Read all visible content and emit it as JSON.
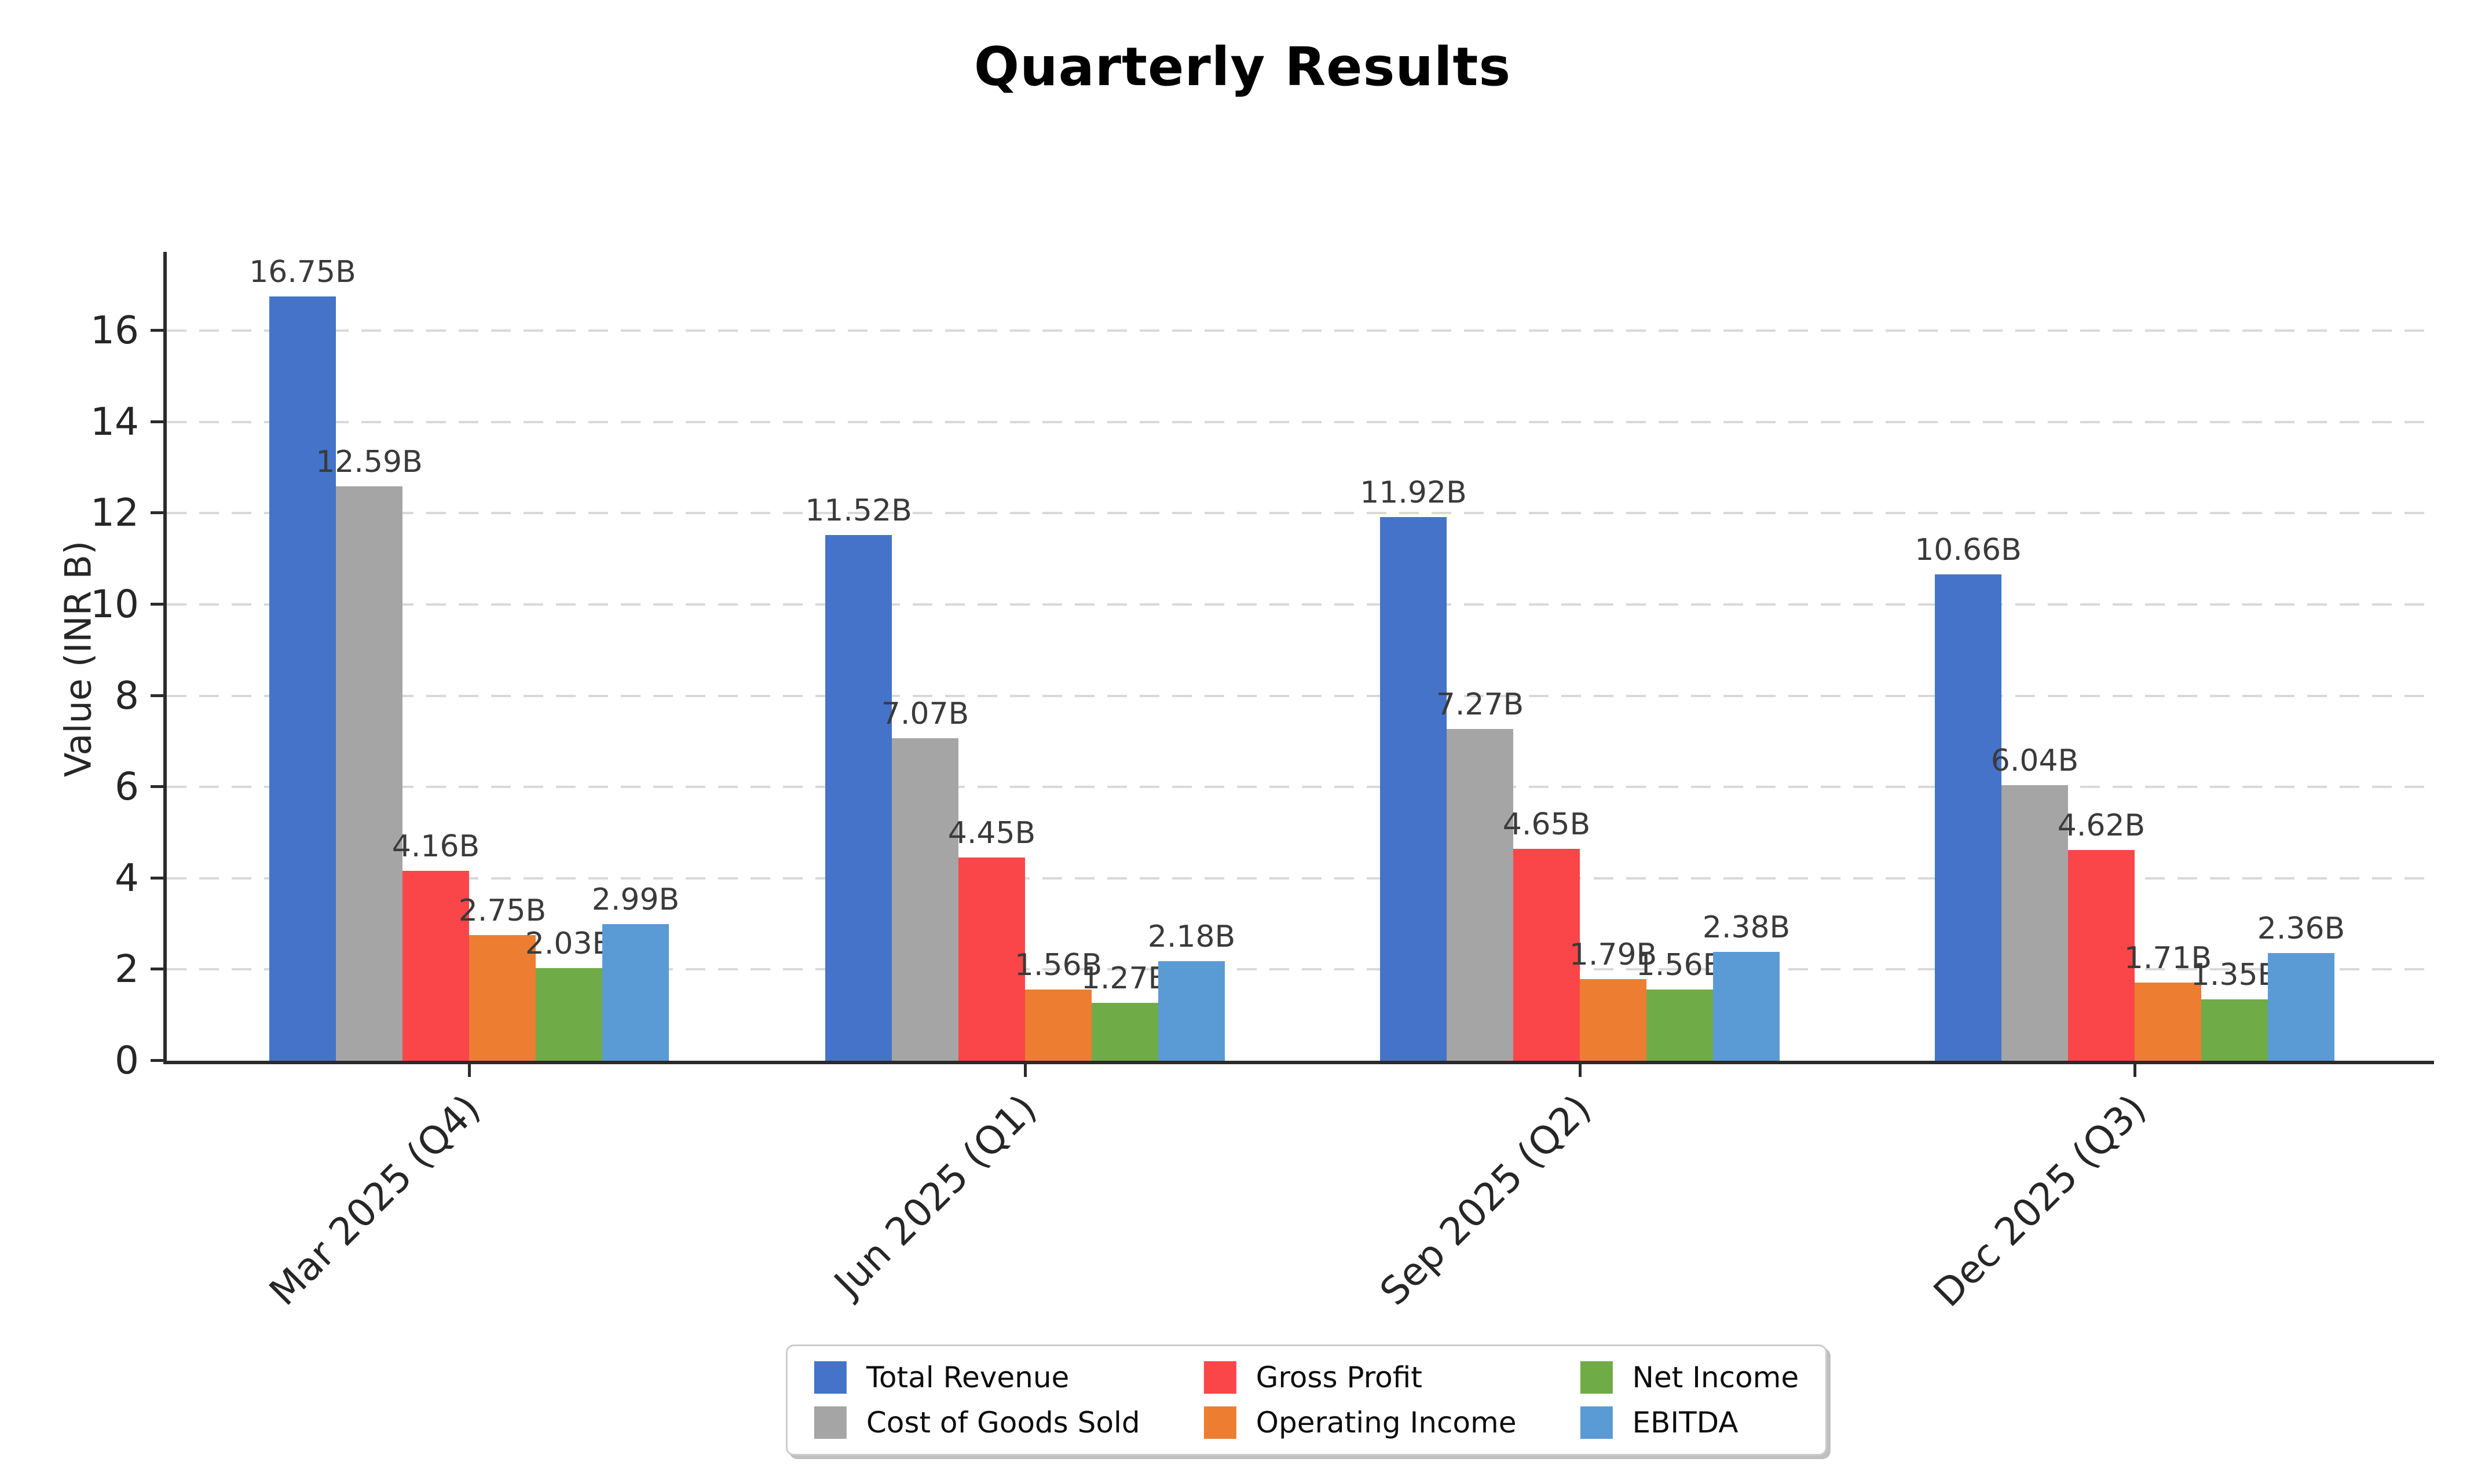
{
  "chart_data": {
    "type": "bar",
    "title": "Quarterly Results",
    "ylabel": "Value (INR B)",
    "xlabel": "",
    "categories": [
      "Mar 2025 (Q4)",
      "Jun 2025 (Q1)",
      "Sep 2025 (Q2)",
      "Dec 2025 (Q3)"
    ],
    "series": [
      {
        "name": "Total Revenue",
        "color": "#4473C9",
        "values": [
          16.75,
          11.52,
          11.92,
          10.66
        ],
        "labels": [
          "16.75B",
          "11.52B",
          "11.92B",
          "10.66B"
        ]
      },
      {
        "name": "Cost of Goods Sold",
        "color": "#A5A5A5",
        "values": [
          12.59,
          7.07,
          7.27,
          6.04
        ],
        "labels": [
          "12.59B",
          "7.07B",
          "7.27B",
          "6.04B"
        ]
      },
      {
        "name": "Gross Profit",
        "color": "#FB4649",
        "values": [
          4.16,
          4.45,
          4.65,
          4.62
        ],
        "labels": [
          "4.16B",
          "4.45B",
          "4.65B",
          "4.62B"
        ]
      },
      {
        "name": "Operating Income",
        "color": "#ED7D31",
        "values": [
          2.75,
          1.56,
          1.79,
          1.71
        ],
        "labels": [
          "2.75B",
          "1.56B",
          "1.79B",
          "1.71B"
        ]
      },
      {
        "name": "Net Income",
        "color": "#6FAC47",
        "values": [
          2.03,
          1.27,
          1.56,
          1.35
        ],
        "labels": [
          "2.03B",
          "1.27B",
          "1.56B",
          "1.35B"
        ]
      },
      {
        "name": "EBITDA",
        "color": "#5B9BD5",
        "values": [
          2.99,
          2.18,
          2.38,
          2.36
        ],
        "labels": [
          "2.99B",
          "2.18B",
          "2.38B",
          "2.36B"
        ]
      }
    ],
    "y_ticks": [
      0,
      2,
      4,
      6,
      8,
      10,
      12,
      14,
      16
    ],
    "ylim": [
      0,
      17.6
    ],
    "grid": true,
    "grid_color": "#d9d9d9",
    "axis_color": "#2b2b2b",
    "legend_position": "bottom-center",
    "value_suffix": "B"
  }
}
